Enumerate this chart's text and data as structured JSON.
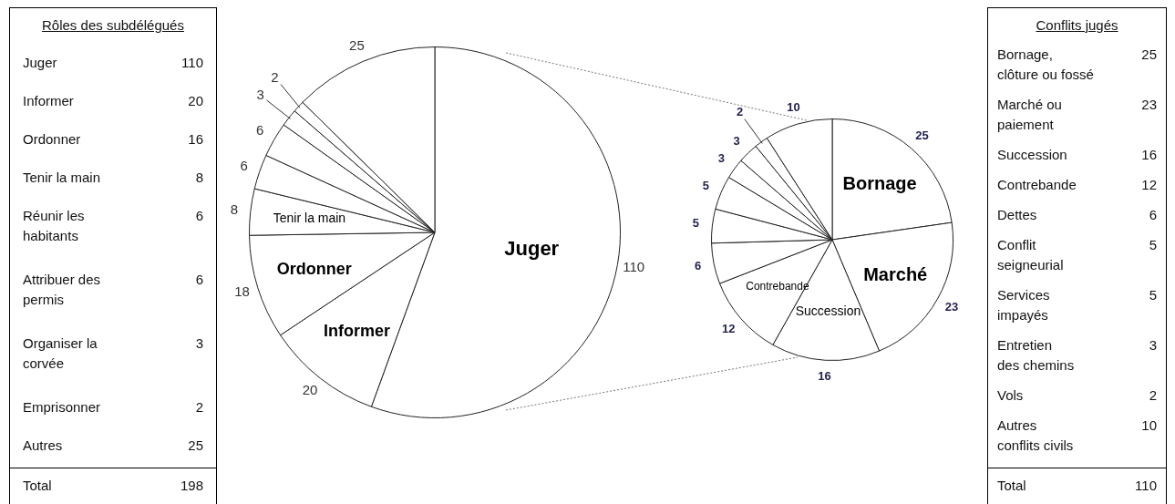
{
  "chart_data": [
    {
      "type": "other",
      "title": "Rôles des subdélégués",
      "categories": [
        "Juger",
        "Informer",
        "Ordonner",
        "Tenir la main",
        "Réunir les\nhabitants",
        "Attribuer des\npermis",
        "Organiser la\ncorvée",
        "Emprisonner",
        "Autres",
        "Total"
      ],
      "values": [
        110,
        20,
        16,
        8,
        6,
        6,
        3,
        2,
        25,
        198
      ],
      "data_labels": true
    },
    {
      "type": "pie",
      "categories": [
        "Juger",
        "Informer",
        "Ordonner",
        "Tenir la main",
        null,
        null,
        null,
        null,
        null
      ],
      "values": [
        110,
        20,
        18,
        8,
        6,
        6,
        3,
        2,
        25
      ],
      "colors": [
        "#ffffff",
        "#ffffff",
        "#ffffff",
        "#ffffff",
        "#ffffff",
        "#ffffff",
        "#ffffff",
        "#ffffff",
        "#ffffff"
      ],
      "data_labels": true
    },
    {
      "type": "pie",
      "categories": [
        "Bornage",
        "Marché",
        "Succession",
        "Contrebande",
        null,
        null,
        null,
        null,
        null,
        null,
        null
      ],
      "values": [
        25,
        23,
        16,
        12,
        6,
        5,
        5,
        3,
        3,
        2,
        10
      ],
      "colors": [
        "#ffffff",
        "#ffffff",
        "#ffffff",
        "#ffffff",
        "#ffffff",
        "#ffffff",
        "#ffffff",
        "#ffffff",
        "#ffffff",
        "#ffffff",
        "#ffffff"
      ],
      "data_labels": true
    },
    {
      "type": "other",
      "title": "Conflits jugés",
      "categories": [
        "Bornage,\nclôture ou fossé",
        "Marché ou\npaiement",
        "Succession",
        "Contrebande",
        "Dettes",
        "Conflit\nseigneurial",
        "Services\nimpayés",
        "Entretien\ndes chemins",
        "Vols",
        "Autres\nconflits civils",
        "Total"
      ],
      "values": [
        25,
        23,
        16,
        12,
        6,
        5,
        5,
        3,
        2,
        10,
        110
      ],
      "data_labels": true
    }
  ]
}
